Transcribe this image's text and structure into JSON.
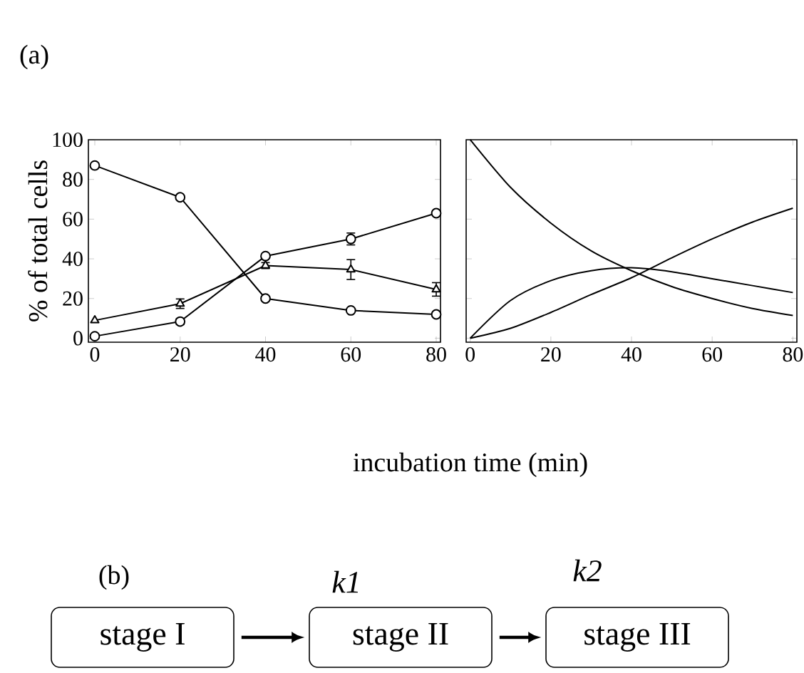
{
  "chart_data": [
    {
      "type": "line",
      "xlabel": "incubation time (min)",
      "ylabel": "% of total cells",
      "annotations": [
        "(a)"
      ],
      "x": [
        0,
        20,
        40,
        60,
        80
      ],
      "xlim": [
        -1.5,
        81
      ],
      "ylim": [
        -2,
        100
      ],
      "xticks": [
        0,
        20,
        40,
        60,
        80
      ],
      "yticks": [
        0,
        20,
        40,
        60,
        80,
        100
      ],
      "line_style": "solid",
      "series": [
        {
          "color": "#000000",
          "marker": "circle",
          "values": [
            87,
            71,
            20,
            14,
            12
          ]
        },
        {
          "color": "#000000",
          "marker": "circle",
          "values": [
            1,
            8.4,
            41.4,
            50,
            63
          ],
          "errors": [
            null,
            1.5,
            null,
            3,
            null
          ]
        },
        {
          "color": "#000000",
          "marker": "triangle",
          "values": [
            9,
            17.4,
            36.6,
            34.6,
            24.6
          ],
          "errors": [
            null,
            2.4,
            1.5,
            5,
            3.4
          ]
        }
      ]
    },
    {
      "type": "line",
      "x": [
        0,
        10,
        20,
        30,
        40,
        50,
        60,
        70,
        80
      ],
      "xlim": [
        -1,
        81
      ],
      "ylim": [
        -2,
        100
      ],
      "xticks": [
        0,
        20,
        40,
        60,
        80
      ],
      "yticks": [
        0,
        20,
        40,
        60,
        80,
        100
      ],
      "tick_labels": "x",
      "marker": "none",
      "line_style": "solid",
      "series": [
        {
          "color": "#000000",
          "values": [
            100,
            76,
            58,
            44,
            34,
            26,
            20,
            15,
            11.5
          ]
        },
        {
          "color": "#000000",
          "values": [
            0,
            19,
            29,
            34,
            35.5,
            33.5,
            30,
            26.5,
            23
          ]
        },
        {
          "color": "#000000",
          "values": [
            0,
            5,
            13,
            22,
            30.5,
            40.5,
            50,
            58.5,
            65.5
          ]
        }
      ]
    },
    {
      "type": "other",
      "annotations": [
        "(b)",
        "stage I",
        "k1",
        "stage II",
        "k2",
        "stage III"
      ]
    }
  ]
}
